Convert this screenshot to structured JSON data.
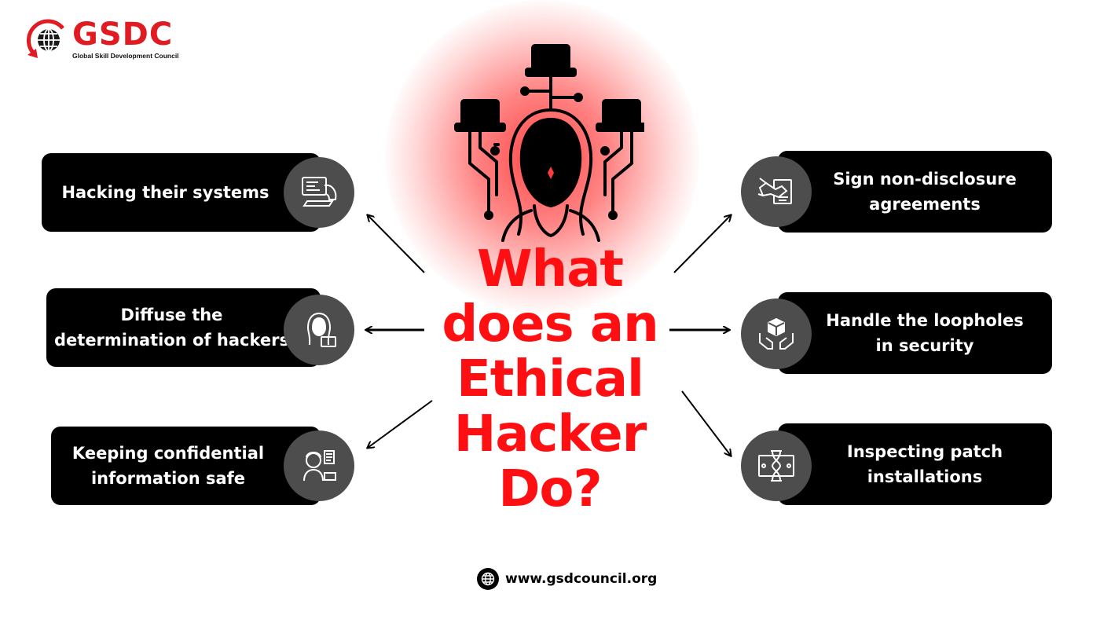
{
  "brand": {
    "name": "GSDC",
    "tagline": "Global Skill Development Council",
    "logo_icon": "globe-arrow-icon",
    "color": "#e01b22"
  },
  "title": {
    "lines": [
      "What",
      "does an",
      "Ethical",
      "Hacker",
      "Do?"
    ],
    "color": "#ff0f12"
  },
  "left_items": [
    {
      "lines": [
        "Hacking their systems"
      ],
      "icon": "hacker-laptop-icon"
    },
    {
      "lines": [
        "Diffuse the",
        "determination of hackers"
      ],
      "icon": "hooded-hacker-icon"
    },
    {
      "lines": [
        "Keeping confidential",
        "information safe"
      ],
      "icon": "confidential-person-icon"
    }
  ],
  "right_items": [
    {
      "lines": [
        "Sign non-disclosure",
        "agreements"
      ],
      "icon": "handshake-contract-icon"
    },
    {
      "lines": [
        "Handle the loopholes",
        "in security"
      ],
      "icon": "hands-box-icon"
    },
    {
      "lines": [
        "Inspecting patch",
        "installations"
      ],
      "icon": "hourglass-money-icon"
    }
  ],
  "footer": {
    "icon": "globe-icon",
    "url": "www.gsdcouncil.org"
  },
  "colors": {
    "card": "#000000",
    "icon_circle": "#4d4d4d",
    "glow": "#ff3c3c"
  }
}
